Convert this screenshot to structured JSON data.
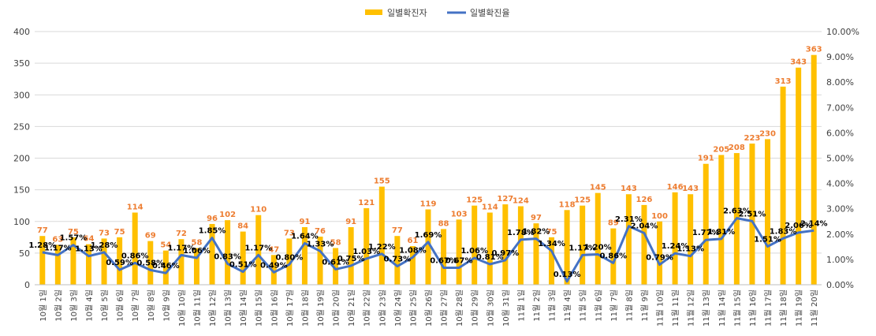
{
  "chart_data": {
    "type": "bar",
    "categories": [
      "10월 1일",
      "10월 2일",
      "10월 3일",
      "10월 4일",
      "10월 5일",
      "10월 6일",
      "10월 7일",
      "10월 8일",
      "10월 9일",
      "10월 10일",
      "10월 11일",
      "10월 12일",
      "10월 13일",
      "10월 14일",
      "10월 15일",
      "10월 16일",
      "10월 17일",
      "10월 18일",
      "10월 19일",
      "10월 20일",
      "10월 21일",
      "10월 22일",
      "10월 23일",
      "10월 24일",
      "10월 25일",
      "10월 26일",
      "10월 27일",
      "10월 28일",
      "10월 29일",
      "10월 30일",
      "10월 31일",
      "11월 1일",
      "11월 2일",
      "11월 3일",
      "11월 4일",
      "11월 5일",
      "11월 6일",
      "11월 7일",
      "11월 8일",
      "11월 9일",
      "11월 10일",
      "11월 11일",
      "11월 12일",
      "11월 13일",
      "11월 14일",
      "11월 15일",
      "11월 16일",
      "11월 17일",
      "11월 18일",
      "11월 19일",
      "11월 20일"
    ],
    "series": [
      {
        "name": "일별확진자",
        "kind": "bar",
        "axis": "left",
        "color": "#FFC000",
        "label_color": "#ED7D31",
        "values": [
          77,
          63,
          75,
          64,
          73,
          75,
          114,
          69,
          54,
          72,
          58,
          96,
          102,
          84,
          110,
          47,
          73,
          91,
          76,
          58,
          91,
          121,
          155,
          77,
          61,
          119,
          88,
          103,
          125,
          114,
          127,
          124,
          97,
          75,
          118,
          125,
          145,
          89,
          143,
          126,
          100,
          146,
          143,
          191,
          205,
          208,
          223,
          230,
          313,
          343,
          363
        ]
      },
      {
        "name": "일별확진율",
        "kind": "line",
        "axis": "right",
        "color": "#4472C4",
        "values": [
          1.28,
          1.17,
          1.57,
          1.13,
          1.28,
          0.59,
          0.86,
          0.58,
          0.46,
          1.17,
          1.06,
          1.85,
          0.83,
          0.51,
          1.17,
          0.49,
          0.8,
          1.64,
          1.33,
          0.61,
          0.75,
          1.03,
          1.22,
          0.73,
          1.08,
          1.69,
          0.67,
          0.67,
          1.06,
          0.81,
          0.97,
          1.78,
          1.82,
          1.34,
          0.13,
          1.17,
          1.2,
          0.86,
          2.31,
          2.04,
          0.79,
          1.24,
          1.13,
          1.77,
          1.81,
          2.63,
          2.51,
          1.51,
          1.83,
          2.06,
          2.14
        ],
        "labels": [
          "1.28%",
          "1.17%",
          "1.57%",
          "1.13%",
          "1.28%",
          "0.59%",
          "0.86%",
          "0.58%",
          "0.46%",
          "1.17%",
          "1.06%",
          "1.85%",
          "0.83%",
          "0.51%",
          "1.17%",
          "0.49%",
          "0.80%",
          "1.64%",
          "1.33%",
          "0.61%",
          "0.75%",
          "1.03%",
          "1.22%",
          "0.73%",
          "1.08%",
          "1.69%",
          "0.67%",
          "0.67%",
          "1.06%",
          "0.81%",
          "0.97%",
          "1.78%",
          "1.82%",
          "1.34%",
          "0.13%",
          "1.17%",
          "1.20%",
          "0.86%",
          "2.31%",
          "2.04%",
          "0.79%",
          "1.24%",
          "1.13%",
          "1.77%",
          "1.81%",
          "2.63%",
          "2.51%",
          "1.51%",
          "1.83%",
          "2.06%",
          "2.14%"
        ]
      }
    ],
    "y_left": {
      "min": 0,
      "max": 400,
      "ticks": [
        "0",
        "50",
        "100",
        "150",
        "200",
        "250",
        "300",
        "350",
        "400"
      ]
    },
    "y_right": {
      "min": 0,
      "max": 10,
      "ticks": [
        "0.00%",
        "1.00%",
        "2.00%",
        "3.00%",
        "4.00%",
        "5.00%",
        "6.00%",
        "7.00%",
        "8.00%",
        "9.00%",
        "10.00%"
      ]
    },
    "grid": true,
    "legend_position": "top"
  }
}
